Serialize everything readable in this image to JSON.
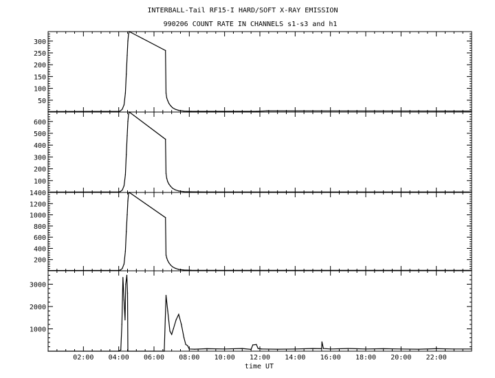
{
  "chart_data": {
    "type": "line",
    "title": "INTERBALL-Tail RF15-I HARD/SOFT X-RAY EMISSION",
    "subtitle": "990206  COUNT RATE IN CHANNELS s1-s3 and h1",
    "xlabel": "time UT",
    "x_unit": "hours UT",
    "xlim": [
      0,
      24
    ],
    "x_ticks": [
      2,
      4,
      6,
      8,
      10,
      12,
      14,
      16,
      18,
      20,
      22
    ],
    "x_tick_labels": [
      "02:00",
      "04:00",
      "06:00",
      "08:00",
      "10:00",
      "12:00",
      "14:00",
      "16:00",
      "18:00",
      "20:00",
      "22:00"
    ],
    "grid": false,
    "panels": [
      {
        "channel": "s1",
        "ylim": [
          0,
          340
        ],
        "y_ticks": [
          50,
          100,
          150,
          200,
          250,
          300
        ],
        "y_tick_labels": [
          "50",
          "100",
          "150",
          "200",
          "250",
          "300"
        ],
        "series": [
          {
            "x": [
              0.0,
              4.0,
              4.1,
              4.2,
              4.3,
              4.38,
              4.43,
              4.48,
              4.52,
              4.56,
              4.6,
              6.65,
              6.68,
              6.72,
              6.78,
              6.85,
              6.95,
              7.05,
              7.2,
              7.4,
              7.7,
              8.1,
              9.0,
              11.8,
              12.4,
              24.0
            ],
            "y": [
              2,
              3,
              5,
              12,
              30,
              80,
              160,
              240,
              300,
              330,
              340,
              260,
              80,
              60,
              48,
              36,
              26,
              18,
              12,
              7,
              4,
              3,
              3,
              3,
              5,
              4
            ]
          }
        ]
      },
      {
        "channel": "s2",
        "ylim": [
          0,
          680
        ],
        "y_ticks": [
          100,
          200,
          300,
          400,
          500,
          600
        ],
        "y_tick_labels": [
          "100",
          "200",
          "300",
          "400",
          "500",
          "600"
        ],
        "series": [
          {
            "x": [
              0.0,
              4.0,
              4.1,
              4.2,
              4.3,
              4.38,
              4.43,
              4.48,
              4.52,
              4.56,
              4.6,
              6.65,
              6.68,
              6.72,
              6.78,
              6.85,
              6.95,
              7.05,
              7.2,
              7.4,
              7.7,
              8.1,
              9.0,
              24.0
            ],
            "y": [
              3,
              4,
              8,
              20,
              55,
              150,
              320,
              480,
              600,
              660,
              680,
              450,
              160,
              120,
              90,
              70,
              50,
              35,
              22,
              12,
              7,
              5,
              4,
              4
            ]
          }
        ]
      },
      {
        "channel": "s3",
        "ylim": [
          0,
          1400
        ],
        "y_ticks": [
          200,
          400,
          600,
          800,
          1000,
          1200,
          1400
        ],
        "y_tick_labels": [
          "200",
          "400",
          "600",
          "800",
          "1000",
          "1200",
          "1400"
        ],
        "series": [
          {
            "x": [
              0.0,
              4.0,
              4.1,
              4.2,
              4.3,
              4.38,
              4.43,
              4.48,
              4.52,
              4.56,
              4.6,
              6.65,
              6.68,
              6.72,
              6.78,
              6.85,
              6.95,
              7.05,
              7.2,
              7.4,
              7.7,
              8.1,
              9.0,
              24.0
            ],
            "y": [
              5,
              8,
              15,
              40,
              120,
              350,
              700,
              1000,
              1250,
              1380,
              1400,
              950,
              280,
              230,
              180,
              140,
              100,
              70,
              45,
              25,
              14,
              10,
              8,
              8
            ]
          }
        ]
      },
      {
        "channel": "h1",
        "ylim": [
          0,
          3600
        ],
        "y_ticks": [
          1000,
          2000,
          3000
        ],
        "y_tick_labels": [
          "1000",
          "2000",
          "3000"
        ],
        "series": [
          {
            "x": [
              0.0,
              4.0,
              4.12,
              4.18,
              4.24,
              4.3,
              4.36,
              4.4,
              4.46,
              4.5,
              4.52,
              6.58,
              6.68,
              6.78,
              6.9,
              7.0,
              7.1,
              7.25,
              7.4,
              7.55,
              7.7,
              7.8,
              7.9,
              8.0,
              8.3,
              9.0,
              10.0,
              11.0,
              11.5,
              11.6,
              11.8,
              11.9,
              12.1,
              13.0,
              14.0,
              15.0,
              15.5,
              15.52,
              15.6,
              16.0,
              17.0,
              18.0,
              19.0,
              20.0,
              21.0,
              22.0,
              23.0,
              24.0
            ],
            "y": [
              0,
              0,
              60,
              1200,
              3300,
              2300,
              1400,
              3000,
              3400,
              2600,
              0,
              0,
              2500,
              1800,
              900,
              750,
              1000,
              1400,
              1650,
              1200,
              600,
              300,
              250,
              100,
              90,
              110,
              100,
              120,
              80,
              280,
              300,
              120,
              100,
              90,
              100,
              120,
              110,
              420,
              120,
              100,
              120,
              100,
              110,
              100,
              90,
              110,
              100,
              100
            ]
          }
        ]
      }
    ]
  }
}
